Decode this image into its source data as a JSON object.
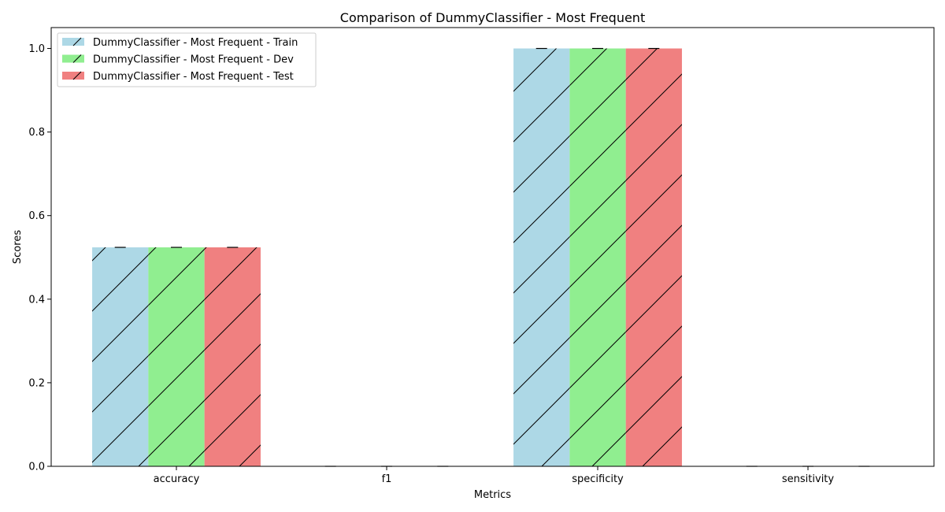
{
  "chart_data": {
    "type": "bar",
    "title": "Comparison of DummyClassifier - Most Frequent",
    "xlabel": "Metrics",
    "ylabel": "Scores",
    "categories": [
      "accuracy",
      "f1",
      "specificity",
      "sensitivity"
    ],
    "ylim": [
      0,
      1.05
    ],
    "yticks": [
      "0.0",
      "0.2",
      "0.4",
      "0.6",
      "0.8",
      "1.0"
    ],
    "grid": false,
    "legend_position": "top-left",
    "hatch": "diagonal",
    "error_bars": true,
    "series": [
      {
        "name": "DummyClassifier - Most Frequent - Train",
        "color": "#add8e6",
        "values": [
          0.524,
          0.0,
          1.0,
          0.0
        ]
      },
      {
        "name": "DummyClassifier - Most Frequent - Dev",
        "color": "#90ee90",
        "values": [
          0.524,
          0.0,
          1.0,
          0.0
        ]
      },
      {
        "name": "DummyClassifier - Most Frequent - Test",
        "color": "#f08080",
        "values": [
          0.524,
          0.0,
          1.0,
          0.0
        ]
      }
    ]
  }
}
